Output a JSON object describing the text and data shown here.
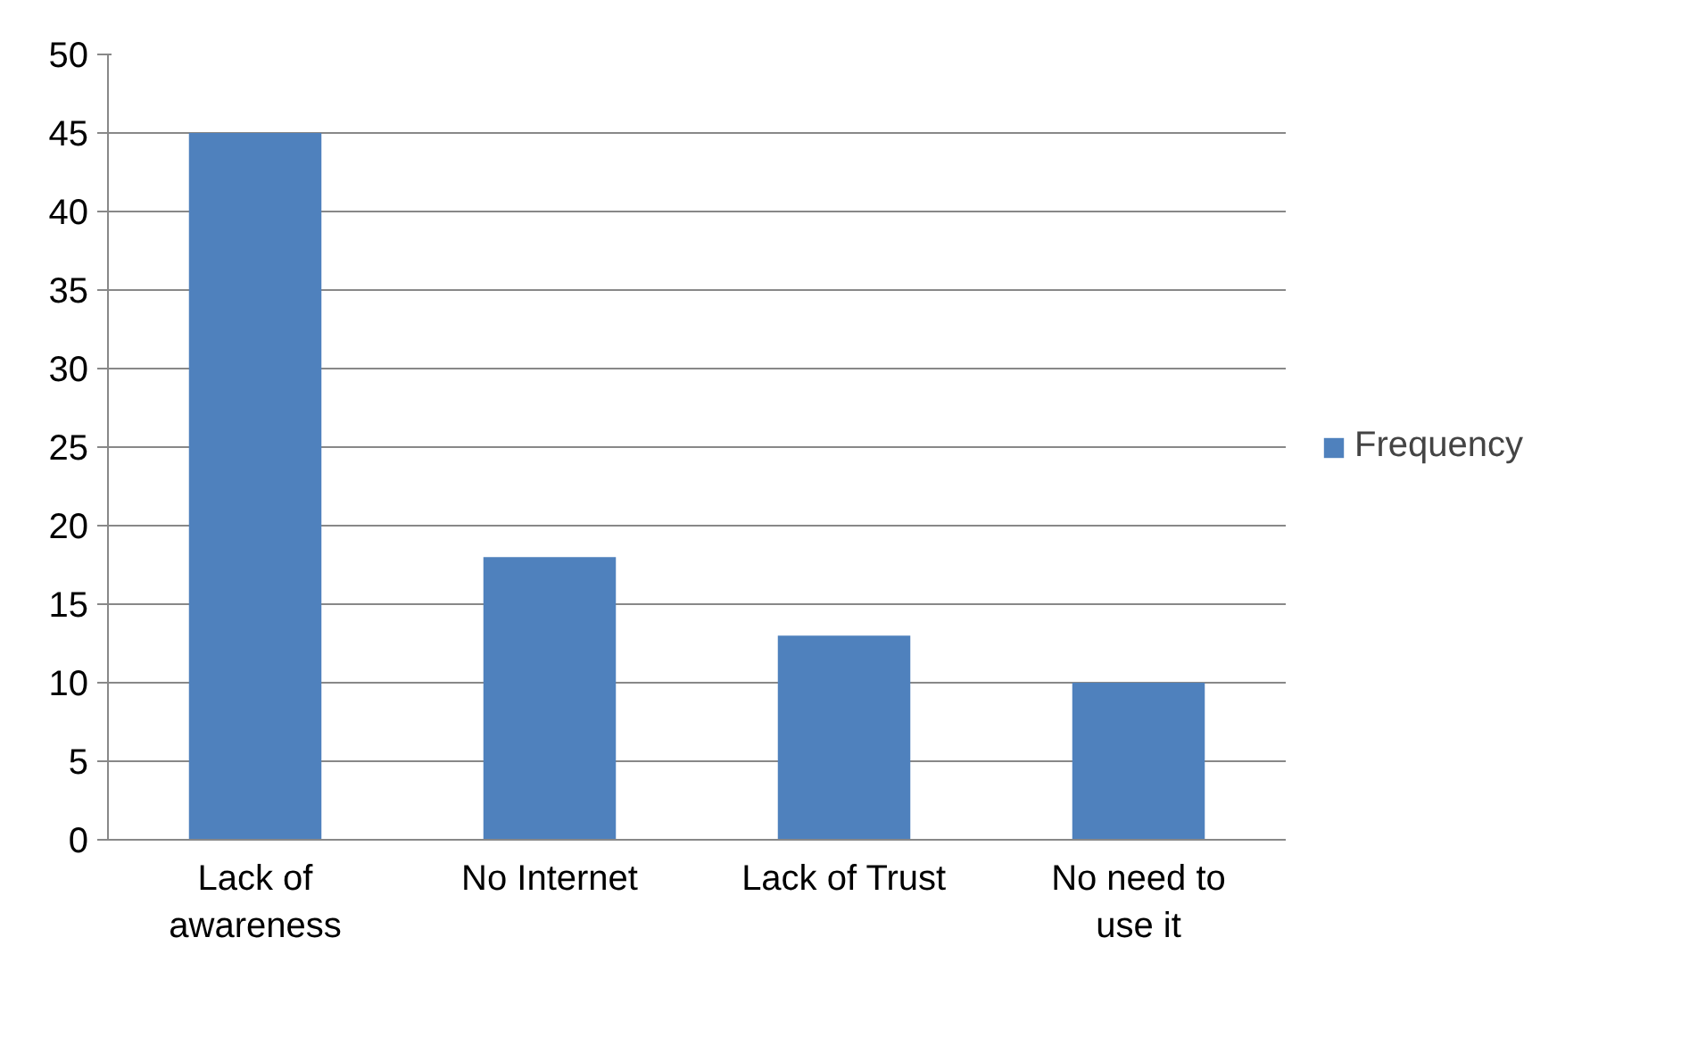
{
  "chart_data": {
    "type": "bar",
    "categories": [
      "Lack of\nawareness",
      "No Internet",
      "Lack of Trust",
      "No need to\nuse it"
    ],
    "series": [
      {
        "name": "Frequency",
        "color": "#4f81bd",
        "values": [
          45,
          18,
          13,
          10
        ]
      }
    ],
    "ylim": [
      0,
      50
    ],
    "yticks": [
      0,
      5,
      10,
      15,
      20,
      25,
      30,
      35,
      40,
      45,
      50
    ],
    "grid": "y",
    "legend": "right"
  }
}
